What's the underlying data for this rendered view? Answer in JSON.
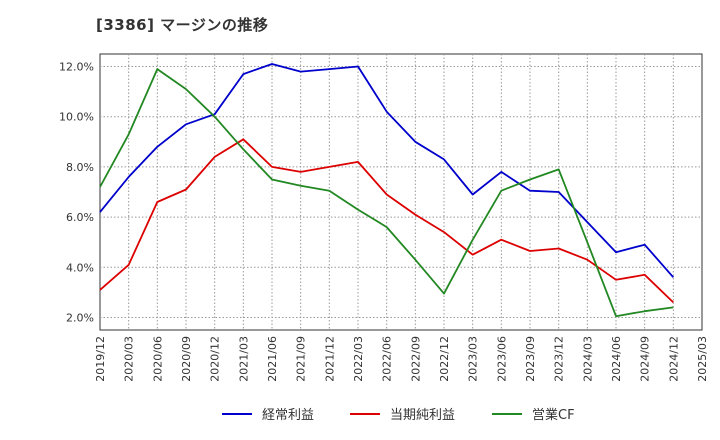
{
  "chart_data": {
    "type": "line",
    "title": "[3386]  マージンの推移",
    "xlabel": "",
    "ylabel": "",
    "x": [
      "2019/12",
      "2020/03",
      "2020/06",
      "2020/09",
      "2020/12",
      "2021/03",
      "2021/06",
      "2021/09",
      "2021/12",
      "2022/03",
      "2022/06",
      "2022/09",
      "2022/12",
      "2023/03",
      "2023/06",
      "2023/09",
      "2023/12",
      "2024/03",
      "2024/06",
      "2024/09",
      "2024/12",
      "2025/03"
    ],
    "ylim": [
      1.5,
      12.5
    ],
    "yticks": [
      2.0,
      4.0,
      6.0,
      8.0,
      10.0,
      12.0
    ],
    "ytick_labels": [
      "2.0%",
      "4.0%",
      "6.0%",
      "8.0%",
      "10.0%",
      "12.0%"
    ],
    "grid": true,
    "legend_position": "bottom",
    "series": [
      {
        "name": "経常利益",
        "color": "#0000cc",
        "values": [
          6.2,
          7.6,
          8.8,
          9.7,
          10.1,
          11.7,
          12.1,
          11.8,
          11.9,
          12.0,
          10.2,
          9.0,
          8.3,
          6.9,
          7.8,
          7.05,
          7.0,
          5.8,
          4.6,
          4.9,
          3.6,
          null
        ]
      },
      {
        "name": "当期純利益",
        "color": "#dd0000",
        "values": [
          3.1,
          4.1,
          6.6,
          7.1,
          8.4,
          9.1,
          8.0,
          7.8,
          8.0,
          8.2,
          6.9,
          6.1,
          5.4,
          4.5,
          5.1,
          4.65,
          4.75,
          4.3,
          3.5,
          3.7,
          2.6,
          null
        ]
      },
      {
        "name": "営業CF",
        "color": "#228822",
        "values": [
          7.2,
          9.3,
          11.9,
          11.1,
          10.0,
          8.7,
          7.5,
          7.25,
          7.05,
          6.3,
          5.6,
          4.3,
          2.95,
          5.1,
          7.05,
          7.5,
          7.9,
          5.0,
          2.05,
          2.25,
          2.4,
          null
        ]
      }
    ]
  }
}
